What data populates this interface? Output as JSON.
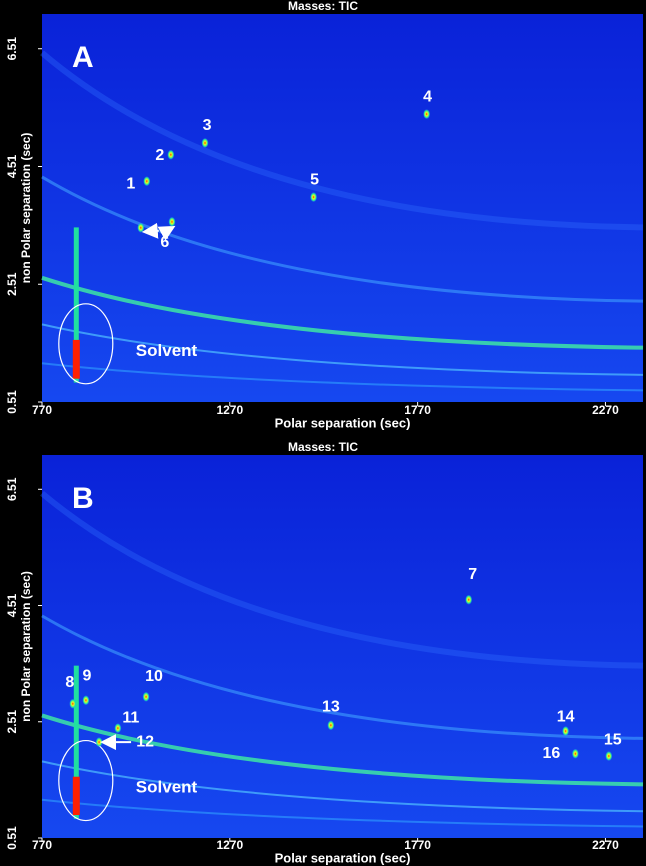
{
  "chart_data": [
    {
      "type": "scatter",
      "title": "Masses:  TIC",
      "panel_label": "A",
      "xlabel": "Polar separation (sec)",
      "ylabel": "non Polar separation (sec)",
      "xlim": [
        770,
        2370
      ],
      "ylim": [
        0.51,
        7.1
      ],
      "xticks": [
        770,
        1270,
        1770,
        2270
      ],
      "yticks": [
        0.51,
        2.51,
        4.51,
        6.51
      ],
      "annotation": "Solvent",
      "points": [
        {
          "label": "1",
          "x": 1049,
          "y": 4.26
        },
        {
          "label": "2",
          "x": 1113,
          "y": 4.71
        },
        {
          "label": "3",
          "x": 1204,
          "y": 4.91
        },
        {
          "label": "4",
          "x": 1794,
          "y": 5.4
        },
        {
          "label": "5",
          "x": 1493,
          "y": 3.99
        },
        {
          "label": "6",
          "x": 1033,
          "y": 3.47
        },
        {
          "label": null,
          "x": 1116,
          "y": 3.57
        }
      ]
    },
    {
      "type": "scatter",
      "title": "Masses:  TIC",
      "panel_label": "B",
      "xlabel": "Polar separation (sec)",
      "ylabel": "non Polar separation (sec)",
      "xlim": [
        770,
        2370
      ],
      "ylim": [
        0.51,
        7.1
      ],
      "xticks": [
        770,
        1270,
        1770,
        2270
      ],
      "yticks": [
        0.51,
        2.51,
        4.51,
        6.51
      ],
      "annotation": "Solvent",
      "points": [
        {
          "label": "7",
          "x": 1906,
          "y": 4.61
        },
        {
          "label": "8",
          "x": 852,
          "y": 2.82
        },
        {
          "label": "9",
          "x": 887,
          "y": 2.88
        },
        {
          "label": "10",
          "x": 1047,
          "y": 2.94
        },
        {
          "label": "11",
          "x": 972,
          "y": 2.4
        },
        {
          "label": "12",
          "x": 922,
          "y": 2.16
        },
        {
          "label": "13",
          "x": 1539,
          "y": 2.45
        },
        {
          "label": "14",
          "x": 2164,
          "y": 2.35
        },
        {
          "label": "15",
          "x": 2279,
          "y": 1.92
        },
        {
          "label": "16",
          "x": 2190,
          "y": 1.96
        }
      ]
    }
  ]
}
